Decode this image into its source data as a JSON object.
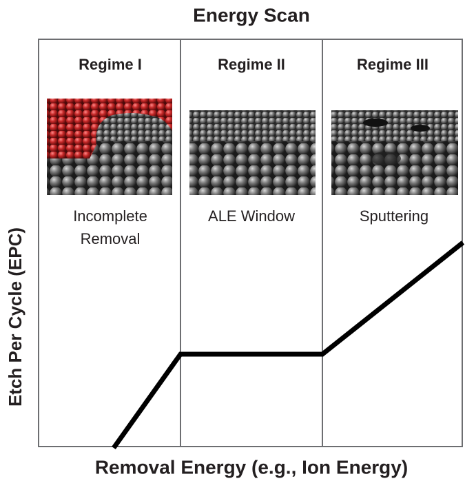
{
  "title": "Energy Scan",
  "regimes": [
    {
      "label": "Regime I",
      "description": [
        "Incomplete",
        "Removal"
      ]
    },
    {
      "label": "Regime II",
      "description": [
        "ALE Window"
      ]
    },
    {
      "label": "Regime III",
      "description": [
        "Sputtering"
      ]
    }
  ],
  "y_axis_label": "Etch Per Cycle (EPC)",
  "x_axis_label": "Removal Energy (e.g., Ion Energy)"
}
